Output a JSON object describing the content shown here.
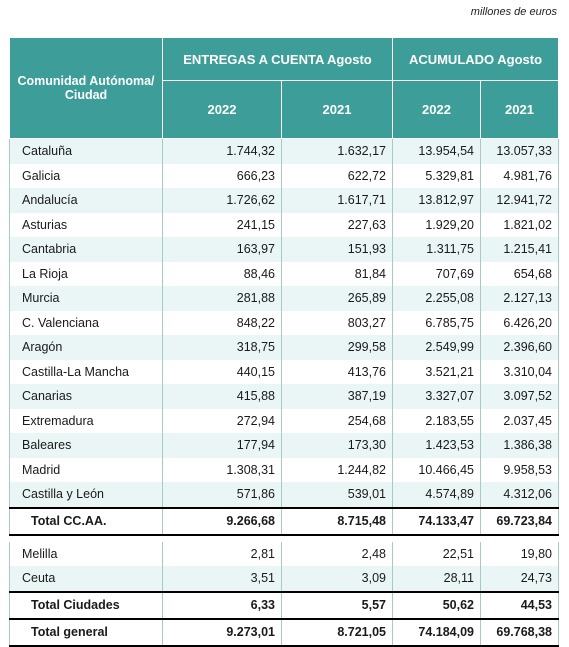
{
  "unit_note": "millones de euros",
  "header": {
    "region_label": "Comunidad Autónoma/ Ciudad",
    "group1": "ENTREGAS A CUENTA  Agosto",
    "group2": "ACUMULADO Agosto",
    "years": [
      "2022",
      "2021",
      "2022",
      "2021"
    ]
  },
  "regions": [
    {
      "name": "Cataluña",
      "values": [
        "1.744,32",
        "1.632,17",
        "13.954,54",
        "13.057,33"
      ]
    },
    {
      "name": "Galicia",
      "values": [
        "666,23",
        "622,72",
        "5.329,81",
        "4.981,76"
      ]
    },
    {
      "name": "Andalucía",
      "values": [
        "1.726,62",
        "1.617,71",
        "13.812,97",
        "12.941,72"
      ]
    },
    {
      "name": "Asturias",
      "values": [
        "241,15",
        "227,63",
        "1.929,20",
        "1.821,02"
      ]
    },
    {
      "name": "Cantabria",
      "values": [
        "163,97",
        "151,93",
        "1.311,75",
        "1.215,41"
      ]
    },
    {
      "name": "La Rioja",
      "values": [
        "88,46",
        "81,84",
        "707,69",
        "654,68"
      ]
    },
    {
      "name": "Murcia",
      "values": [
        "281,88",
        "265,89",
        "2.255,08",
        "2.127,13"
      ]
    },
    {
      "name": "C. Valenciana",
      "values": [
        "848,22",
        "803,27",
        "6.785,75",
        "6.426,20"
      ]
    },
    {
      "name": "Aragón",
      "values": [
        "318,75",
        "299,58",
        "2.549,99",
        "2.396,60"
      ]
    },
    {
      "name": "Castilla-La Mancha",
      "values": [
        "440,15",
        "413,76",
        "3.521,21",
        "3.310,04"
      ]
    },
    {
      "name": "Canarias",
      "values": [
        "415,88",
        "387,19",
        "3.327,07",
        "3.097,52"
      ]
    },
    {
      "name": "Extremadura",
      "values": [
        "272,94",
        "254,68",
        "2.183,55",
        "2.037,45"
      ]
    },
    {
      "name": "Baleares",
      "values": [
        "177,94",
        "173,30",
        "1.423,53",
        "1.386,38"
      ]
    },
    {
      "name": "Madrid",
      "values": [
        "1.308,31",
        "1.244,82",
        "10.466,45",
        "9.958,53"
      ]
    },
    {
      "name": "Castilla y León",
      "values": [
        "571,86",
        "539,01",
        "4.574,89",
        "4.312,06"
      ]
    }
  ],
  "total_ccaa": {
    "name": "Total CC.AA.",
    "values": [
      "9.266,68",
      "8.715,48",
      "74.133,47",
      "69.723,84"
    ]
  },
  "cities": [
    {
      "name": "Melilla",
      "values": [
        "2,81",
        "2,48",
        "22,51",
        "19,80"
      ]
    },
    {
      "name": "Ceuta",
      "values": [
        "3,51",
        "3,09",
        "28,11",
        "24,73"
      ]
    }
  ],
  "total_cities": {
    "name": "Total Ciudades",
    "values": [
      "6,33",
      "5,57",
      "50,62",
      "44,53"
    ]
  },
  "total_general": {
    "name": "Total general",
    "values": [
      "9.273,01",
      "8.721,05",
      "74.184,09",
      "69.768,38"
    ]
  }
}
